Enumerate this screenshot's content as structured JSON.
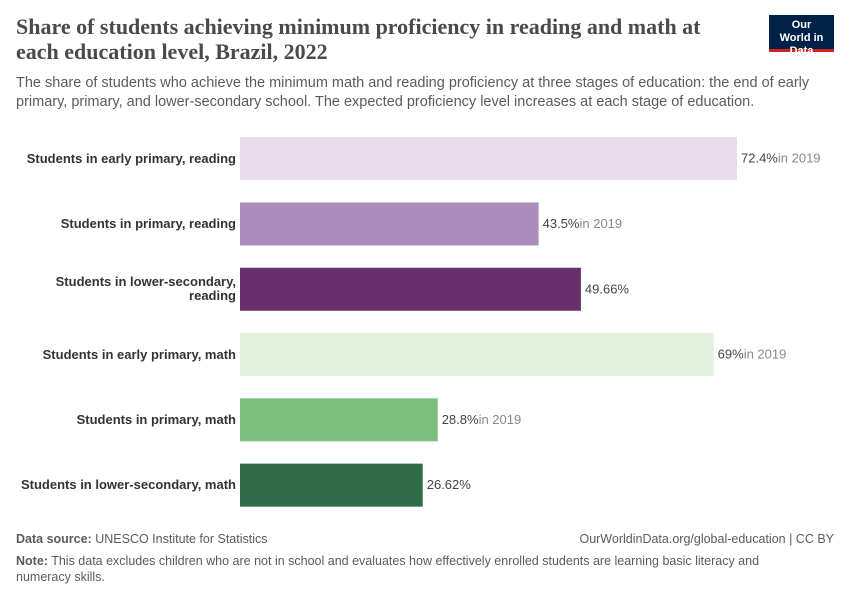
{
  "chart_data": {
    "type": "bar",
    "orientation": "horizontal",
    "title": "Share of students achieving minimum proficiency in reading and math at each education level, Brazil, 2022",
    "subtitle": "The share of students who achieve the minimum math and reading proficiency at three stages of education: the end of early primary, primary, and lower-secondary school. The expected proficiency level increases at each stage of education.",
    "categories": [
      "Students in early primary, reading",
      "Students in primary, reading",
      "Students in lower-secondary, reading",
      "Students in early primary, math",
      "Students in primary, math",
      "Students in lower-secondary, math"
    ],
    "values": [
      72.4,
      43.5,
      49.66,
      69,
      28.8,
      26.62
    ],
    "value_labels": [
      "72.4%",
      "43.5%",
      "49.66%",
      "69%",
      "28.8%",
      "26.62%"
    ],
    "year_notes": [
      "in 2019",
      "in 2019",
      null,
      "in 2019",
      "in 2019",
      null
    ],
    "colors": [
      "#e9dcec",
      "#ab8bbc",
      "#66306b",
      "#e2f2dc",
      "#7bbf7e",
      "#2f6b47"
    ]
  },
  "logo": "Our World in Data",
  "footer": {
    "source_label": "Data source:",
    "source": "UNESCO Institute for Statistics",
    "url": "OurWorldinData.org/global-education | CC BY",
    "note_label": "Note:",
    "note": "This data excludes children who are not in school and evaluates how effectively enrolled students are learning basic literacy and numeracy skills."
  }
}
